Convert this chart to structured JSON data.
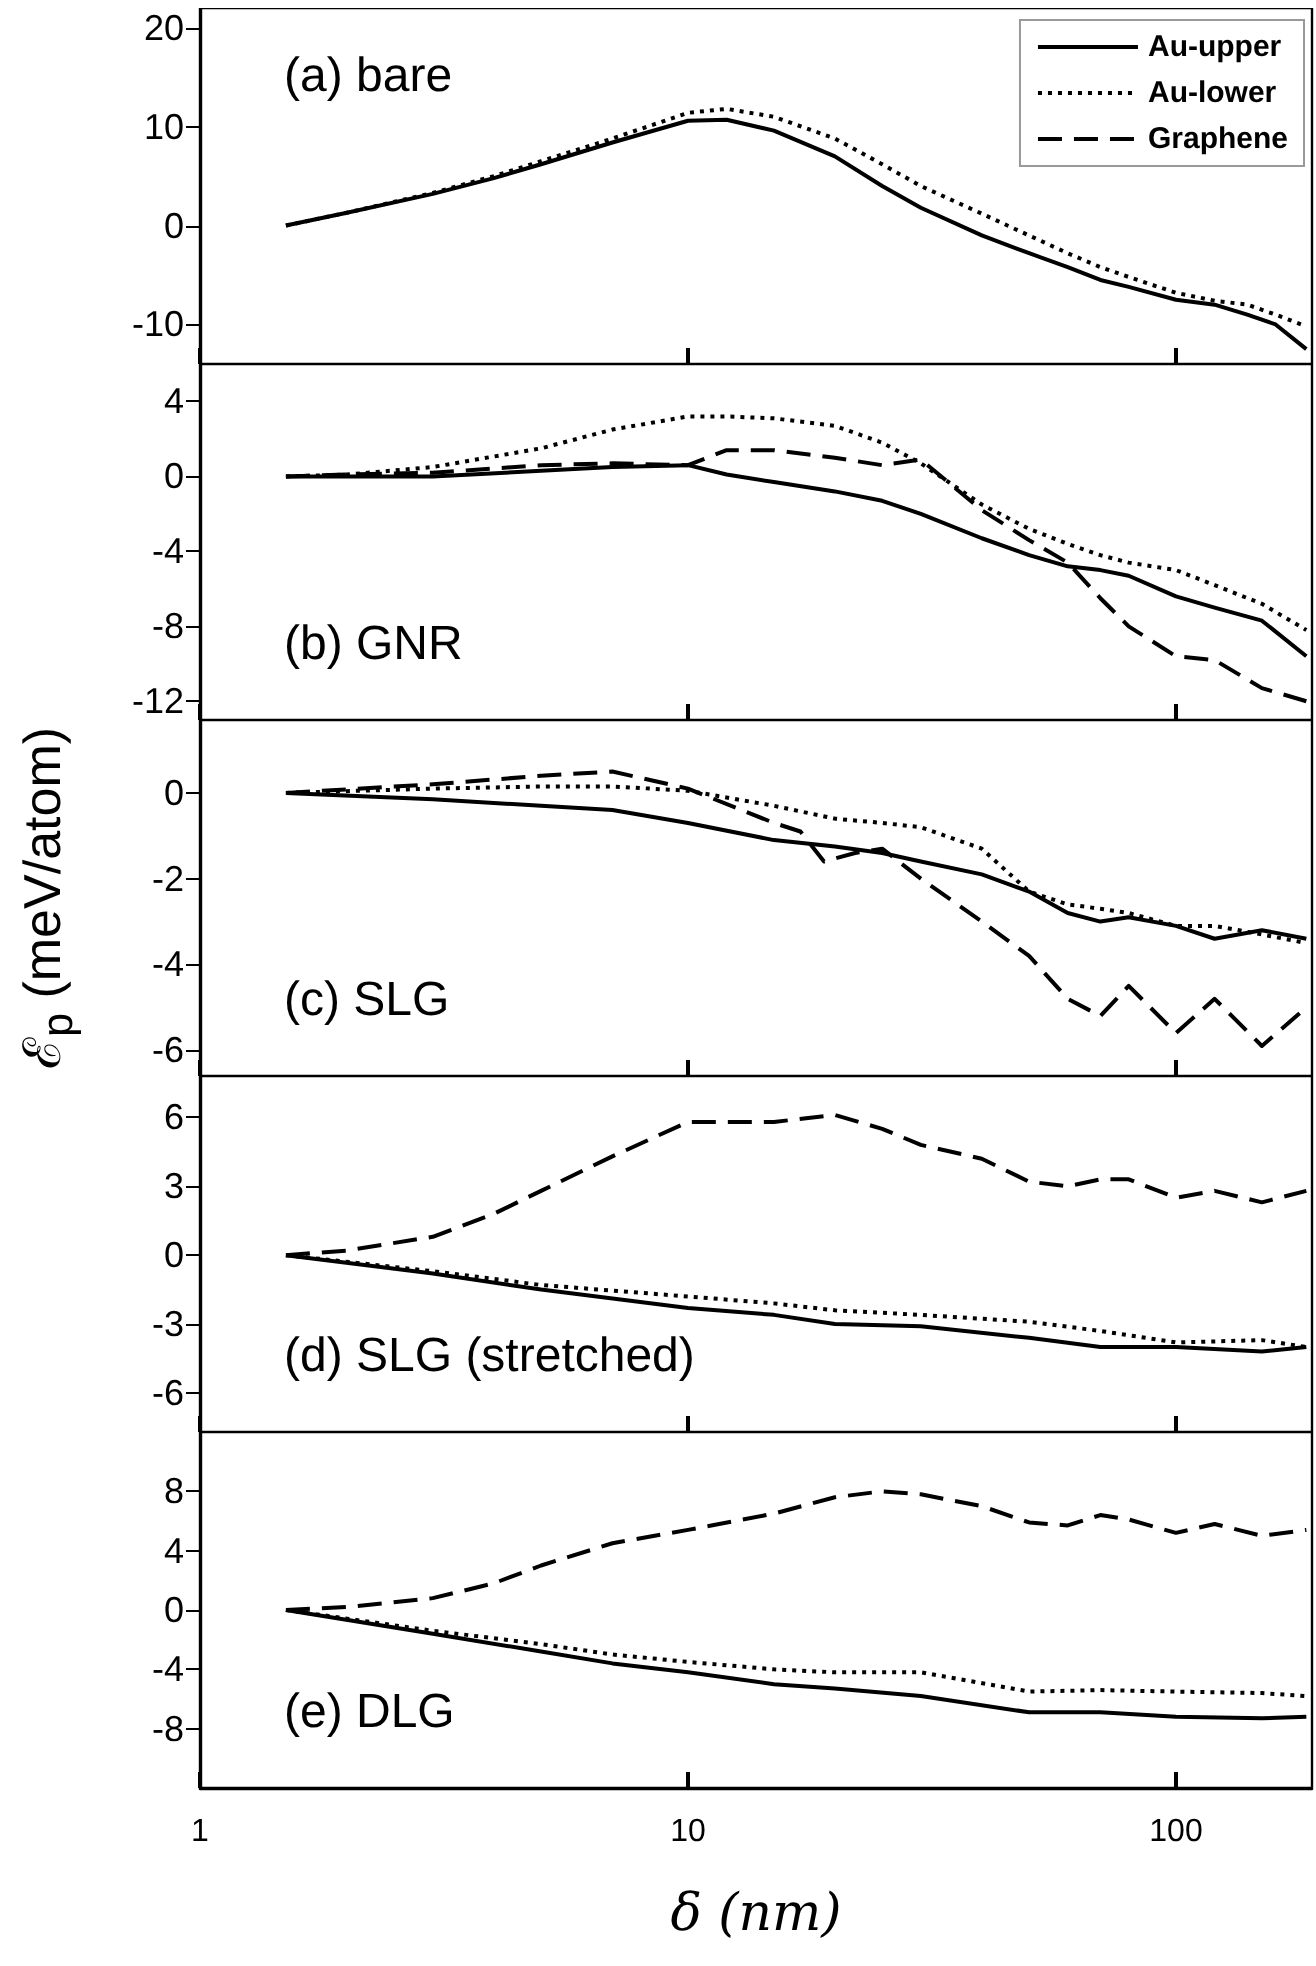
{
  "chart_data": [
    {
      "type": "line",
      "log": "x",
      "xlim": [
        1,
        190
      ],
      "xticks": [
        1,
        10,
        100
      ],
      "ylim": [
        -14,
        22
      ],
      "yticks": [
        -10,
        0,
        10,
        20
      ],
      "tick_labels": "y",
      "legend": "top right",
      "annotations": [
        "(a) bare"
      ],
      "series": [
        {
          "name": "Au-upper",
          "color": "#000000",
          "line_style": "solid",
          "x": [
            1.5,
            2,
            3,
            4,
            5,
            7,
            10,
            12,
            15,
            20,
            25,
            30,
            40,
            50,
            60,
            70,
            80,
            100,
            120,
            140,
            160,
            185
          ],
          "values": [
            0,
            1.3,
            3.2,
            4.8,
            6.2,
            8.4,
            10.6,
            10.7,
            9.6,
            7.0,
            4.0,
            1.8,
            -1.0,
            -2.8,
            -4.2,
            -5.5,
            -6.2,
            -7.5,
            -8.0,
            -9.0,
            -10.0,
            -12.5
          ]
        },
        {
          "name": "Au-lower",
          "color": "#000000",
          "line_style": "dotted",
          "x": [
            1.5,
            2,
            3,
            4,
            5,
            7,
            10,
            12,
            15,
            20,
            25,
            30,
            40,
            50,
            60,
            70,
            80,
            100,
            120,
            140,
            160,
            185
          ],
          "values": [
            0,
            1.3,
            3.3,
            5.0,
            6.5,
            8.8,
            11.4,
            11.8,
            11.0,
            8.8,
            6.2,
            4.0,
            1.2,
            -1.0,
            -2.8,
            -4.2,
            -5.2,
            -6.8,
            -7.6,
            -8.0,
            -9.0,
            -10.2
          ]
        },
        {
          "name": "Graphene",
          "color": "#000000",
          "line_style": "dashed"
        }
      ]
    },
    {
      "type": "line",
      "log": "x",
      "xlim": [
        1,
        190
      ],
      "xticks": [
        1,
        10,
        100
      ],
      "ylim": [
        -13,
        6
      ],
      "yticks": [
        -12,
        -8,
        -4,
        0,
        4
      ],
      "tick_labels": "y",
      "annotations": [
        "(b) GNR"
      ],
      "series": [
        {
          "color": "#000000",
          "line_style": "solid",
          "x": [
            1.5,
            2,
            3,
            5,
            7,
            10,
            12,
            15,
            20,
            25,
            30,
            40,
            50,
            60,
            70,
            80,
            100,
            120,
            150,
            185
          ],
          "values": [
            0,
            0,
            0,
            0.3,
            0.5,
            0.6,
            0.1,
            -0.3,
            -0.8,
            -1.3,
            -2.0,
            -3.3,
            -4.2,
            -4.8,
            -5.0,
            -5.3,
            -6.4,
            -7.0,
            -7.7,
            -9.6
          ]
        },
        {
          "color": "#000000",
          "line_style": "dotted",
          "x": [
            1.5,
            2,
            3,
            5,
            7,
            10,
            12,
            15,
            20,
            25,
            30,
            40,
            50,
            60,
            70,
            80,
            100,
            120,
            150,
            185
          ],
          "values": [
            0,
            0.1,
            0.5,
            1.5,
            2.5,
            3.2,
            3.2,
            3.1,
            2.7,
            1.8,
            0.7,
            -1.5,
            -2.8,
            -3.6,
            -4.2,
            -4.6,
            -5.0,
            -5.8,
            -6.8,
            -8.2
          ]
        },
        {
          "color": "#000000",
          "line_style": "dashed",
          "x": [
            1.5,
            2,
            3,
            5,
            7,
            10,
            12,
            15,
            20,
            25,
            30,
            40,
            50,
            60,
            70,
            80,
            100,
            120,
            150,
            185
          ],
          "values": [
            0,
            0.1,
            0.2,
            0.6,
            0.7,
            0.6,
            1.4,
            1.4,
            1.0,
            0.6,
            0.9,
            -1.8,
            -3.4,
            -4.6,
            -6.5,
            -8.0,
            -9.6,
            -9.8,
            -11.3,
            -12
          ]
        }
      ]
    },
    {
      "type": "line",
      "log": "x",
      "xlim": [
        1,
        190
      ],
      "xticks": [
        1,
        10,
        100
      ],
      "ylim": [
        -6.6,
        1.7
      ],
      "yticks": [
        -6,
        -4,
        -2,
        0
      ],
      "tick_labels": "y",
      "ylabel": "ℰ$_{p}$ (meV/atom)",
      "annotations": [
        "(c) SLG"
      ],
      "series": [
        {
          "color": "#000000",
          "line_style": "solid",
          "x": [
            1.5,
            3,
            5,
            7,
            10,
            15,
            20,
            25,
            30,
            40,
            50,
            60,
            70,
            80,
            100,
            120,
            150,
            185
          ],
          "values": [
            0,
            -0.15,
            -0.3,
            -0.4,
            -0.7,
            -1.1,
            -1.25,
            -1.4,
            -1.6,
            -1.9,
            -2.3,
            -2.8,
            -3.0,
            -2.9,
            -3.1,
            -3.4,
            -3.2,
            -3.4
          ]
        },
        {
          "color": "#000000",
          "line_style": "dotted",
          "x": [
            1.5,
            3,
            5,
            7,
            10,
            15,
            20,
            25,
            30,
            40,
            50,
            60,
            70,
            80,
            100,
            120,
            150,
            185
          ],
          "values": [
            0,
            0.1,
            0.15,
            0.15,
            0.05,
            -0.3,
            -0.6,
            -0.7,
            -0.8,
            -1.3,
            -2.3,
            -2.6,
            -2.7,
            -2.8,
            -3.1,
            -3.1,
            -3.3,
            -3.5
          ]
        },
        {
          "color": "#000000",
          "line_style": "dashed",
          "x": [
            1.5,
            3,
            5,
            7,
            10,
            15,
            17,
            19,
            22,
            25,
            30,
            40,
            50,
            60,
            70,
            80,
            100,
            120,
            150,
            185
          ],
          "values": [
            0,
            0.2,
            0.4,
            0.5,
            0.1,
            -0.7,
            -0.9,
            -1.6,
            -1.4,
            -1.3,
            -2.0,
            -3.0,
            -3.8,
            -4.8,
            -5.2,
            -4.5,
            -5.6,
            -4.8,
            -5.9,
            -5.0
          ]
        }
      ]
    },
    {
      "type": "line",
      "log": "x",
      "xlim": [
        1,
        190
      ],
      "xticks": [
        1,
        10,
        100
      ],
      "ylim": [
        -7.7,
        7.8
      ],
      "yticks": [
        -6,
        -3,
        0,
        3,
        6
      ],
      "tick_labels": "y",
      "annotations": [
        "(d) SLG (stretched)"
      ],
      "series": [
        {
          "color": "#000000",
          "line_style": "solid",
          "x": [
            1.5,
            3,
            5,
            10,
            15,
            20,
            30,
            50,
            70,
            100,
            150,
            185
          ],
          "values": [
            0,
            -0.8,
            -1.5,
            -2.3,
            -2.6,
            -3.0,
            -3.1,
            -3.6,
            -4.0,
            -4.0,
            -4.2,
            -4.0
          ]
        },
        {
          "color": "#000000",
          "line_style": "dotted",
          "x": [
            1.5,
            3,
            5,
            10,
            15,
            20,
            30,
            50,
            70,
            100,
            150,
            185
          ],
          "values": [
            0,
            -0.7,
            -1.3,
            -1.8,
            -2.1,
            -2.4,
            -2.6,
            -2.9,
            -3.3,
            -3.8,
            -3.7,
            -4.0
          ]
        },
        {
          "color": "#000000",
          "line_style": "dashed",
          "x": [
            1.5,
            2,
            3,
            4,
            5,
            7,
            10,
            12,
            15,
            20,
            25,
            30,
            40,
            50,
            60,
            70,
            80,
            100,
            120,
            150,
            185
          ],
          "values": [
            0,
            0.2,
            0.8,
            1.8,
            2.8,
            4.3,
            5.8,
            5.8,
            5.8,
            6.1,
            5.5,
            4.8,
            4.2,
            3.2,
            3.0,
            3.3,
            3.3,
            2.5,
            2.8,
            2.3,
            2.8
          ]
        }
      ]
    },
    {
      "type": "line",
      "log": "x",
      "xlim": [
        1,
        190
      ],
      "xticks": [
        1,
        10,
        100
      ],
      "ylim": [
        -12,
        12
      ],
      "yticks": [
        -8,
        -4,
        0,
        4,
        8
      ],
      "xlabel": "δ (nm)",
      "annotations": [
        "(e) DLG"
      ],
      "series": [
        {
          "color": "#000000",
          "line_style": "solid",
          "x": [
            1.5,
            3,
            5,
            7,
            10,
            15,
            20,
            30,
            50,
            70,
            100,
            150,
            185
          ],
          "values": [
            0,
            -1.6,
            -2.8,
            -3.6,
            -4.2,
            -5.0,
            -5.3,
            -5.8,
            -6.9,
            -6.9,
            -7.2,
            -7.3,
            -7.2
          ]
        },
        {
          "color": "#000000",
          "line_style": "dotted",
          "x": [
            1.5,
            3,
            5,
            7,
            10,
            15,
            20,
            30,
            50,
            70,
            100,
            150,
            185
          ],
          "values": [
            0,
            -1.4,
            -2.3,
            -3.0,
            -3.5,
            -4.0,
            -4.2,
            -4.2,
            -5.5,
            -5.4,
            -5.5,
            -5.6,
            -5.8
          ]
        },
        {
          "color": "#000000",
          "line_style": "dashed",
          "x": [
            1.5,
            2,
            3,
            4,
            5,
            7,
            10,
            15,
            20,
            25,
            30,
            40,
            50,
            60,
            70,
            80,
            100,
            120,
            150,
            185
          ],
          "values": [
            0,
            0.2,
            0.8,
            1.8,
            3.0,
            4.5,
            5.4,
            6.5,
            7.6,
            8.0,
            7.8,
            7.0,
            5.9,
            5.7,
            6.4,
            6.1,
            5.2,
            5.8,
            5.0,
            5.4
          ]
        }
      ]
    }
  ]
}
